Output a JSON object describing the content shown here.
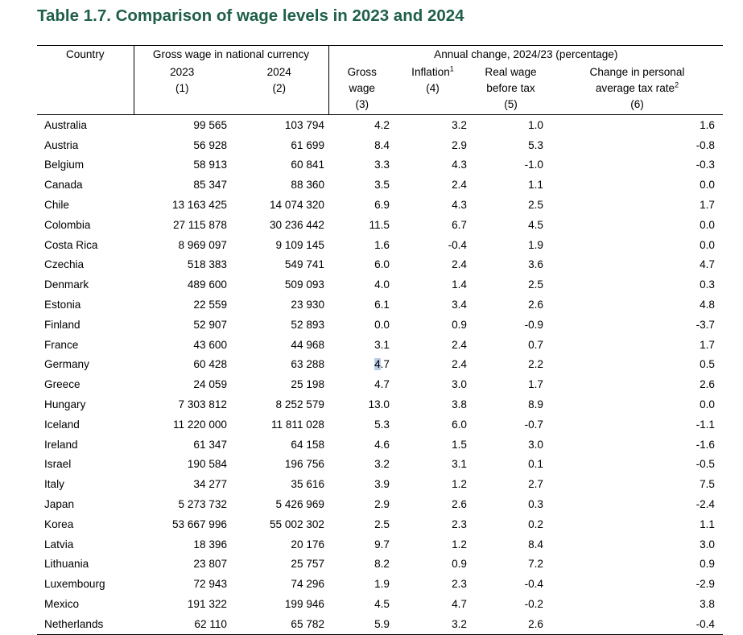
{
  "title": "Table 1.7. Comparison of wage levels in 2023 and 2024",
  "header": {
    "country": "Country",
    "group_gross": "Gross wage in national currency",
    "group_change": "Annual change, 2024/23 (percentage)",
    "col1_label": "2023",
    "col1_num": "(1)",
    "col2_label": "2024",
    "col2_num": "(2)",
    "col3_line1": "Gross",
    "col3_line2": "wage",
    "col3_num": "(3)",
    "col4_label": "Inflation",
    "col4_sup": "1",
    "col4_num": "(4)",
    "col5_line1": "Real wage",
    "col5_line2": "before tax",
    "col5_num": "(5)",
    "col6_line1": "Change in personal",
    "col6_line2": "average tax rate",
    "col6_sup": "2",
    "col6_num": "(6)"
  },
  "rows": [
    [
      "Australia",
      "99 565",
      "103 794",
      "4.2",
      "3.2",
      "1.0",
      "1.6"
    ],
    [
      "Austria",
      "56 928",
      "61 699",
      "8.4",
      "2.9",
      "5.3",
      "-0.8"
    ],
    [
      "Belgium",
      "58 913",
      "60 841",
      "3.3",
      "4.3",
      "-1.0",
      "-0.3"
    ],
    [
      "Canada",
      "85 347",
      "88 360",
      "3.5",
      "2.4",
      "1.1",
      "0.0"
    ],
    [
      "Chile",
      "13 163 425",
      "14 074 320",
      "6.9",
      "4.3",
      "2.5",
      "1.7"
    ],
    [
      "Colombia",
      "27 115 878",
      "30 236 442",
      "11.5",
      "6.7",
      "4.5",
      "0.0"
    ],
    [
      "Costa Rica",
      "8 969 097",
      "9 109 145",
      "1.6",
      "-0.4",
      "1.9",
      "0.0"
    ],
    [
      "Czechia",
      "518 383",
      "549 741",
      "6.0",
      "2.4",
      "3.6",
      "4.7"
    ],
    [
      "Denmark",
      "489 600",
      "509 093",
      "4.0",
      "1.4",
      "2.5",
      "0.3"
    ],
    [
      "Estonia",
      "22 559",
      "23 930",
      "6.1",
      "3.4",
      "2.6",
      "4.8"
    ],
    [
      "Finland",
      "52 907",
      "52 893",
      "0.0",
      "0.9",
      "-0.9",
      "-3.7"
    ],
    [
      "France",
      "43 600",
      "44 968",
      "3.1",
      "2.4",
      "0.7",
      "1.7"
    ],
    [
      "Germany",
      "60 428",
      "63 288",
      "4.7",
      "2.4",
      "2.2",
      "0.5"
    ],
    [
      "Greece",
      "24 059",
      "25 198",
      "4.7",
      "3.0",
      "1.7",
      "2.6"
    ],
    [
      "Hungary",
      "7 303 812",
      "8 252 579",
      "13.0",
      "3.8",
      "8.9",
      "0.0"
    ],
    [
      "Iceland",
      "11 220 000",
      "11 811 028",
      "5.3",
      "6.0",
      "-0.7",
      "-1.1"
    ],
    [
      "Ireland",
      "61 347",
      "64 158",
      "4.6",
      "1.5",
      "3.0",
      "-1.6"
    ],
    [
      "Israel",
      "190 584",
      "196 756",
      "3.2",
      "3.1",
      "0.1",
      "-0.5"
    ],
    [
      "Italy",
      "34 277",
      "35 616",
      "3.9",
      "1.2",
      "2.7",
      "7.5"
    ],
    [
      "Japan",
      "5 273 732",
      "5 426 969",
      "2.9",
      "2.6",
      "0.3",
      "-2.4"
    ],
    [
      "Korea",
      "53 667 996",
      "55 002 302",
      "2.5",
      "2.3",
      "0.2",
      "1.1"
    ],
    [
      "Latvia",
      "18 396",
      "20 176",
      "9.7",
      "1.2",
      "8.4",
      "3.0"
    ],
    [
      "Lithuania",
      "23 807",
      "25 757",
      "8.2",
      "0.9",
      "7.2",
      "0.9"
    ],
    [
      "Luxembourg",
      "72 943",
      "74 296",
      "1.9",
      "2.3",
      "-0.4",
      "-2.9"
    ],
    [
      "Mexico",
      "191 322",
      "199 946",
      "4.5",
      "4.7",
      "-0.2",
      "3.8"
    ],
    [
      "Netherlands",
      "62 110",
      "65 782",
      "5.9",
      "3.2",
      "2.6",
      "-0.4"
    ]
  ]
}
